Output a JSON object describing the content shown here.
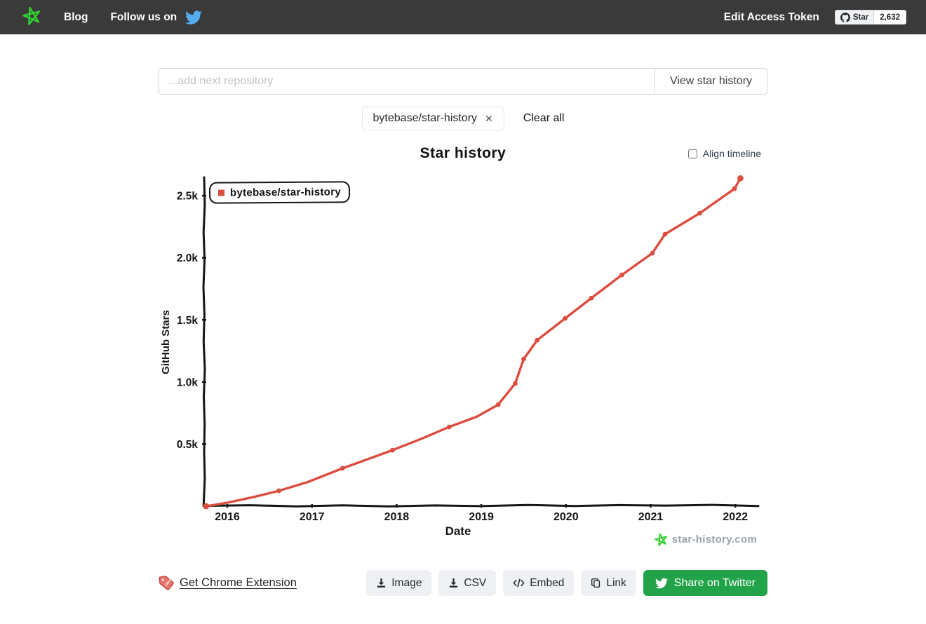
{
  "navbar": {
    "blog_label": "Blog",
    "follow_label": "Follow us on",
    "edit_token_label": "Edit Access Token",
    "github_badge": {
      "star_label": "Star",
      "count": "2,632"
    }
  },
  "search": {
    "placeholder": "...add next repository",
    "button_label": "View star history"
  },
  "repo_chips": [
    {
      "label": "bytebase/star-history",
      "close_icon": "✕"
    }
  ],
  "clear_all_label": "Clear all",
  "chart_header": {
    "title": "Star history",
    "align_timeline_label": "Align timeline",
    "align_timeline_checked": false
  },
  "chart_data": {
    "type": "line",
    "title": "Star history",
    "xlabel": "Date",
    "ylabel": "GitHub Stars",
    "x_ticks": [
      2016,
      2017,
      2018,
      2019,
      2020,
      2021,
      2022
    ],
    "y_ticks": [
      {
        "label": "0.5k",
        "value": 500
      },
      {
        "label": "1.0k",
        "value": 1000
      },
      {
        "label": "1.5k",
        "value": 1500
      },
      {
        "label": "2.0k",
        "value": 2000
      },
      {
        "label": "2.5k",
        "value": 2500
      }
    ],
    "xlim": [
      2015.7,
      2022.35
    ],
    "ylim": [
      0,
      2660
    ],
    "grid": false,
    "legend_position": "top-left",
    "legend": [
      "bytebase/star-history"
    ],
    "series": [
      {
        "name": "bytebase/star-history",
        "color": "#db4d3f",
        "points_format": "[year, stars, has_marker]",
        "points": [
          [
            2015.75,
            0,
            1
          ],
          [
            2016.0,
            28,
            0
          ],
          [
            2016.3,
            72,
            0
          ],
          [
            2016.61,
            124,
            1
          ],
          [
            2016.95,
            195,
            0
          ],
          [
            2017.36,
            305,
            1
          ],
          [
            2017.95,
            451,
            1
          ],
          [
            2018.3,
            545,
            0
          ],
          [
            2018.62,
            638,
            1
          ],
          [
            2018.95,
            722,
            0
          ],
          [
            2019.2,
            818,
            1
          ],
          [
            2019.4,
            988,
            1
          ],
          [
            2019.5,
            1185,
            1
          ],
          [
            2019.66,
            1337,
            1
          ],
          [
            2019.99,
            1512,
            1
          ],
          [
            2020.3,
            1676,
            1
          ],
          [
            2020.66,
            1862,
            1
          ],
          [
            2021.02,
            2037,
            1
          ],
          [
            2021.17,
            2190,
            1
          ],
          [
            2021.58,
            2359,
            1
          ],
          [
            2021.99,
            2556,
            1
          ],
          [
            2022.06,
            2640,
            1
          ]
        ]
      }
    ]
  },
  "watermark": {
    "text": "star-history.com"
  },
  "footer": {
    "chrome_link_label": "Get Chrome Extension",
    "buttons": [
      {
        "label": "Image",
        "icon": "download-icon"
      },
      {
        "label": "CSV",
        "icon": "download-icon"
      },
      {
        "label": "Embed",
        "icon": "code-icon"
      },
      {
        "label": "Link",
        "icon": "copy-icon"
      }
    ],
    "share_button": {
      "label": "Share on Twitter",
      "icon": "twitter-icon"
    }
  },
  "colors": {
    "navbar_bg": "#3a3a3a",
    "line_red": "#db4d3f",
    "logo_green": "#2fd32f",
    "share_green": "#22a34a",
    "twitter_blue": "#55acee",
    "watermark_gray": "#9aa3ab"
  }
}
